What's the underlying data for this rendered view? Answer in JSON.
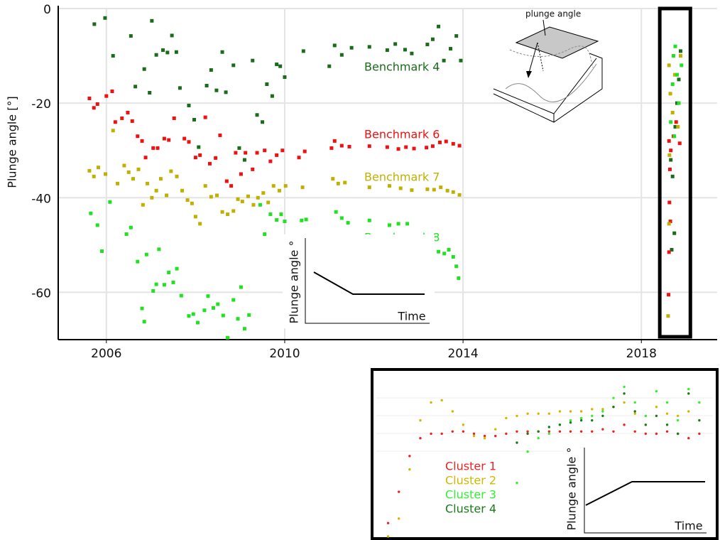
{
  "chart_data": [
    {
      "type": "scatter",
      "y_label": "Plunge angle [°]",
      "marker": "square",
      "grid": true,
      "xlim": [
        2004.92,
        2019.7
      ],
      "ylim": [
        -70,
        0
      ],
      "xticks": [
        2006,
        2010,
        2014,
        2018
      ],
      "yticks": [
        0,
        -20,
        -40,
        -60
      ],
      "series": [
        {
          "name": "Benchmark 4",
          "color": "#1a6b1a",
          "x": [
            2005.73,
            2005.97,
            2006.15,
            2006.55,
            2006.65,
            2006.85,
            2006.97,
            2007.02,
            2007.12,
            2007.27,
            2007.37,
            2007.47,
            2007.57,
            2007.65,
            2007.85,
            2007.97,
            2008.07,
            2008.25,
            2008.35,
            2008.47,
            2008.6,
            2008.68,
            2008.85,
            2008.98,
            2009.1,
            2009.28,
            2009.38,
            2009.5,
            2009.6,
            2009.72,
            2009.82,
            2009.9,
            2010.0,
            2010.42,
            2011.0,
            2011.12,
            2011.28,
            2011.5,
            2011.9,
            2012.3,
            2012.48,
            2012.7,
            2012.85,
            2013.2,
            2013.32,
            2013.45,
            2013.57,
            2013.72,
            2013.85,
            2013.95,
            2018.66,
            2018.7,
            2018.74,
            2018.68,
            2018.76,
            2018.8,
            2018.84,
            2018.88
          ],
          "values": [
            -3.3,
            -2,
            -10,
            -5.8,
            -16.5,
            -12.8,
            -17.8,
            -2.6,
            -9.8,
            -8.8,
            -9.3,
            -5.7,
            -9.2,
            -16.8,
            -20.5,
            -23.5,
            -29.3,
            -16.3,
            -13,
            -17.3,
            -9.2,
            -17.7,
            -12,
            -29.5,
            -32,
            -11,
            -22.5,
            -24,
            -16,
            -18.5,
            -11.8,
            -12.2,
            -14.5,
            -9,
            -12.2,
            -7.8,
            -9.8,
            -8.3,
            -8.1,
            -8.8,
            -7.5,
            -8.7,
            -9.5,
            -7.6,
            -6.5,
            -3.8,
            -11,
            -8.5,
            -5.8,
            -11,
            -32,
            -35.5,
            -47.5,
            -51,
            -25,
            -20,
            -15,
            -9
          ]
        },
        {
          "name": "Benchmark 6",
          "color": "#ee1111",
          "x": [
            2005.62,
            2005.72,
            2005.8,
            2006.0,
            2006.13,
            2006.2,
            2006.35,
            2006.48,
            2006.58,
            2006.7,
            2006.8,
            2006.88,
            2007.05,
            2007.15,
            2007.3,
            2007.4,
            2007.52,
            2007.75,
            2007.85,
            2008.0,
            2008.1,
            2008.22,
            2008.32,
            2008.45,
            2008.55,
            2008.7,
            2008.8,
            2008.9,
            2009.02,
            2009.12,
            2009.28,
            2009.38,
            2009.55,
            2009.68,
            2009.82,
            2009.95,
            2010.32,
            2010.45,
            2011.05,
            2011.12,
            2011.28,
            2011.45,
            2011.9,
            2012.3,
            2012.55,
            2012.72,
            2012.9,
            2013.18,
            2013.32,
            2013.48,
            2013.62,
            2013.78,
            2013.92,
            2018.62,
            2018.66,
            2018.64,
            2018.63,
            2018.65,
            2018.62,
            2018.61,
            2018.72,
            2018.78,
            2018.86
          ],
          "values": [
            -19,
            -21,
            -20.2,
            -18.5,
            -17.5,
            -24,
            -23.2,
            -22,
            -23.8,
            -27,
            -28,
            -31.5,
            -29.5,
            -29.5,
            -27.5,
            -27.8,
            -23.2,
            -27.5,
            -28.2,
            -31.5,
            -31,
            -23,
            -32.8,
            -31.6,
            -26.8,
            -36.5,
            -37.5,
            -30.5,
            -35,
            -30.5,
            -34,
            -30.5,
            -30,
            -32.3,
            -31,
            -30,
            -31.5,
            -30.2,
            -29.5,
            -28,
            -29,
            -29.2,
            -29.1,
            -29.3,
            -29.7,
            -29.3,
            -29.6,
            -29.4,
            -29.1,
            -28.3,
            -28.1,
            -28.6,
            -29,
            -28,
            -30,
            -34,
            -41,
            -45,
            -51.5,
            -60.5,
            -27,
            -24,
            -28.5
          ]
        },
        {
          "name": "Benchmark 7",
          "color": "#c0b000",
          "x": [
            2005.62,
            2005.72,
            2005.82,
            2005.98,
            2006.15,
            2006.25,
            2006.4,
            2006.5,
            2006.6,
            2006.72,
            2006.82,
            2006.92,
            2007.02,
            2007.12,
            2007.22,
            2007.35,
            2007.45,
            2007.58,
            2007.7,
            2007.82,
            2007.92,
            2008.0,
            2008.1,
            2008.22,
            2008.35,
            2008.48,
            2008.6,
            2008.72,
            2008.85,
            2008.95,
            2009.05,
            2009.18,
            2009.3,
            2009.4,
            2009.52,
            2009.63,
            2009.75,
            2009.88,
            2010.02,
            2010.4,
            2011.08,
            2011.2,
            2011.35,
            2011.9,
            2012.35,
            2012.6,
            2012.85,
            2013.2,
            2013.35,
            2013.5,
            2013.65,
            2013.78,
            2013.92,
            2018.62,
            2018.6,
            2018.63,
            2018.65,
            2018.62,
            2018.7,
            2018.75,
            2018.82,
            2018.88
          ],
          "values": [
            -34.3,
            -35.5,
            -33.6,
            -35,
            -25.8,
            -37,
            -33.2,
            -34.6,
            -36,
            -34,
            -41.5,
            -37,
            -40,
            -38.5,
            -36,
            -39.5,
            -34.4,
            -35.5,
            -38.5,
            -40.5,
            -41.2,
            -44,
            -45.5,
            -37.5,
            -39.8,
            -39.5,
            -43,
            -43.5,
            -42.8,
            -40.3,
            -40.8,
            -39.7,
            -41.5,
            -40,
            -39,
            -41,
            -37.5,
            -38.5,
            -37.5,
            -37.8,
            -36,
            -37,
            -36.8,
            -37.8,
            -37.5,
            -38,
            -38.4,
            -38.2,
            -38.3,
            -37.8,
            -38.5,
            -38.8,
            -39.4,
            -45.5,
            -65,
            -31,
            -18,
            -12,
            -22,
            -14,
            -25,
            -10
          ]
        },
        {
          "name": "Benchmark 8",
          "color": "#22e022",
          "x": [
            2005.65,
            2005.8,
            2005.9,
            2006.08,
            2006.45,
            2006.55,
            2006.7,
            2006.8,
            2006.85,
            2006.9,
            2007.05,
            2007.12,
            2007.18,
            2007.3,
            2007.4,
            2007.5,
            2007.58,
            2007.68,
            2007.85,
            2007.95,
            2008.05,
            2008.2,
            2008.28,
            2008.4,
            2008.5,
            2008.62,
            2008.72,
            2008.85,
            2008.95,
            2009.02,
            2009.1,
            2009.2,
            2009.45,
            2009.55,
            2009.68,
            2009.82,
            2009.92,
            2010.0,
            2010.38,
            2010.48,
            2011.15,
            2011.28,
            2011.42,
            2011.9,
            2012.35,
            2012.55,
            2012.75,
            2013.3,
            2013.45,
            2013.58,
            2013.68,
            2013.78,
            2013.85,
            2013.9,
            2018.7,
            2018.72,
            2018.76,
            2018.8,
            2018.84,
            2018.66,
            2018.9,
            2018.74
          ],
          "values": [
            -43.3,
            -45.8,
            -51.3,
            -40.9,
            -47.7,
            -46.3,
            -53.5,
            -63.4,
            -66.2,
            -52,
            -59.7,
            -58.3,
            -50.9,
            -58.4,
            -55.8,
            -57.9,
            -55,
            -60.7,
            -65,
            -64.6,
            -66.4,
            -63.8,
            -60.8,
            -63.3,
            -62.5,
            -64.9,
            -69.6,
            -61.6,
            -65.6,
            -58.9,
            -67.7,
            -64.8,
            -41.5,
            -47.7,
            -43.5,
            -44.7,
            -43.5,
            -45,
            -44.8,
            -44.6,
            -43,
            -44.3,
            -45.3,
            -44.8,
            -45.8,
            -45.5,
            -45.5,
            -51.3,
            -51.4,
            -51.8,
            -51,
            -52.5,
            -54.5,
            -57,
            -16,
            -10,
            -8,
            -14,
            -20,
            -24,
            -12,
            -27
          ]
        }
      ]
    },
    {
      "type": "scatter",
      "marker": "circle",
      "xlim": [
        2018.54,
        2018.94
      ],
      "ylim": [
        -40,
        -5
      ],
      "x": [
        2018.55,
        2018.563,
        2018.576,
        2018.589,
        2018.602,
        2018.615,
        2018.628,
        2018.641,
        2018.654,
        2018.667,
        2018.68,
        2018.693,
        2018.706,
        2018.719,
        2018.732,
        2018.745,
        2018.758,
        2018.771,
        2018.784,
        2018.797,
        2018.81,
        2018.823,
        2018.836,
        2018.849,
        2018.862,
        2018.875,
        2018.888,
        2018.901,
        2018.914,
        2018.927
      ],
      "series": [
        {
          "name": "Cluster 1",
          "color": "#ee2222",
          "values": [
            -37,
            -30,
            -22,
            -18,
            -17,
            -17,
            -16.5,
            -16.5,
            -17,
            -17.5,
            -17.5,
            -17,
            -16.5,
            -16.5,
            -16.5,
            -16.5,
            -16.5,
            -16.5,
            -16.5,
            -16.5,
            -16,
            -16.5,
            -15,
            -16.5,
            -17,
            -17,
            -16.5,
            -17,
            -18,
            -17
          ]
        },
        {
          "name": "Cluster 2",
          "color": "#d0b800",
          "values": [
            -40,
            -36,
            -25,
            -14,
            -10,
            -9.5,
            -12,
            -15,
            -17.5,
            -18,
            -16,
            -13.5,
            -13,
            -12.5,
            -12.5,
            -12.5,
            -12,
            -12,
            -12,
            -11.5,
            -11.5,
            -11,
            -10,
            -12.5,
            -13,
            -11,
            -12.5,
            -13,
            -12,
            -10
          ]
        },
        {
          "name": "Cluster 3",
          "color": "#33ee33",
          "values": [
            null,
            null,
            null,
            null,
            null,
            null,
            null,
            null,
            null,
            null,
            null,
            null,
            -28,
            -21,
            -18,
            -17,
            -15,
            -14,
            -13.5,
            -13,
            -12,
            -9,
            -6.5,
            -10,
            -13,
            -7.5,
            -10,
            -14,
            -7,
            -10
          ]
        },
        {
          "name": "Cluster 4",
          "color": "#1a7a1a",
          "values": [
            null,
            null,
            null,
            null,
            null,
            null,
            null,
            null,
            null,
            null,
            null,
            null,
            -19,
            -17,
            -16.5,
            -15.5,
            -15,
            -14.5,
            -14,
            -14,
            -13,
            -11,
            -8,
            -12,
            -15,
            -13,
            -15,
            -17,
            -8,
            -14
          ]
        }
      ]
    }
  ],
  "diagrams": {
    "block": {
      "label": "plunge angle"
    },
    "trend_down": {
      "y_label": "Plunge angle °",
      "x_label": "Time"
    },
    "trend_up": {
      "y_label": "Plunge angle °",
      "x_label": "Time"
    }
  }
}
